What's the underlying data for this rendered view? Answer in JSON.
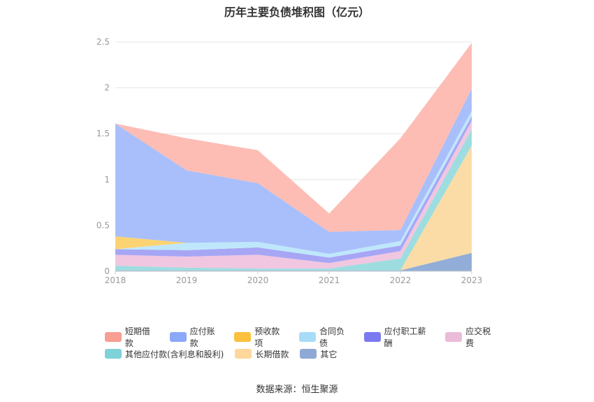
{
  "chart_title": "历年主要负债堆积图（亿元）",
  "source": "数据来源：恒生聚源",
  "chart_data": {
    "type": "area",
    "stacked": true,
    "title": "历年主要负债堆积图（亿元）",
    "xlabel": "",
    "ylabel": "",
    "categories": [
      "2018",
      "2019",
      "2020",
      "2021",
      "2022",
      "2023"
    ],
    "ylim": [
      0,
      2.5
    ],
    "yticks": [
      "0",
      "0.5",
      "1",
      "1.5",
      "2",
      "2.5"
    ],
    "grid": true,
    "legend_position": "bottom",
    "series": [
      {
        "name": "其它",
        "color": "#92aed8",
        "values": [
          0.01,
          0.01,
          0.01,
          0.01,
          0.01,
          0.2
        ]
      },
      {
        "name": "长期借款",
        "color": "#fbdca6",
        "values": [
          0.0,
          0.0,
          0.0,
          0.0,
          0.0,
          1.17
        ]
      },
      {
        "name": "其他应付款(含利息和股利)",
        "color": "#9ddde0",
        "values": [
          0.05,
          0.03,
          0.02,
          0.02,
          0.13,
          0.18
        ]
      },
      {
        "name": "应交税费",
        "color": "#f0c6e0",
        "values": [
          0.12,
          0.12,
          0.15,
          0.06,
          0.08,
          0.09
        ]
      },
      {
        "name": "应付职工薪酬",
        "color": "#a6a6f5",
        "values": [
          0.06,
          0.07,
          0.08,
          0.06,
          0.06,
          0.05
        ]
      },
      {
        "name": "合同负债",
        "color": "#bfe7fb",
        "values": [
          0.0,
          0.08,
          0.06,
          0.04,
          0.05,
          0.06
        ]
      },
      {
        "name": "预收款项",
        "color": "#fcd372",
        "values": [
          0.14,
          0.0,
          0.0,
          0.0,
          0.0,
          0.0
        ]
      },
      {
        "name": "应付账款",
        "color": "#a9bffb",
        "values": [
          1.23,
          0.79,
          0.64,
          0.24,
          0.12,
          0.24
        ]
      },
      {
        "name": "短期借款",
        "color": "#fdbdb4",
        "values": [
          0.0,
          0.35,
          0.36,
          0.2,
          1.0,
          0.5
        ]
      }
    ]
  },
  "legend_rows": [
    [
      {
        "name": "短期借款",
        "color": "#f89e92"
      },
      {
        "name": "应付账款",
        "color": "#8ca8f8"
      },
      {
        "name": "预收款项",
        "color": "#fbc13c"
      },
      {
        "name": "合同负债",
        "color": "#a7dcf7"
      },
      {
        "name": "应付职工薪酬",
        "color": "#7b7af0"
      },
      {
        "name": "应交税费",
        "color": "#ebbcd9"
      }
    ],
    [
      {
        "name": "其他应付款(含利息和股利)",
        "color": "#7fd3d8"
      },
      {
        "name": "长期借款",
        "color": "#fdd79b"
      },
      {
        "name": "其它",
        "color": "#8fa9d6"
      }
    ]
  ]
}
